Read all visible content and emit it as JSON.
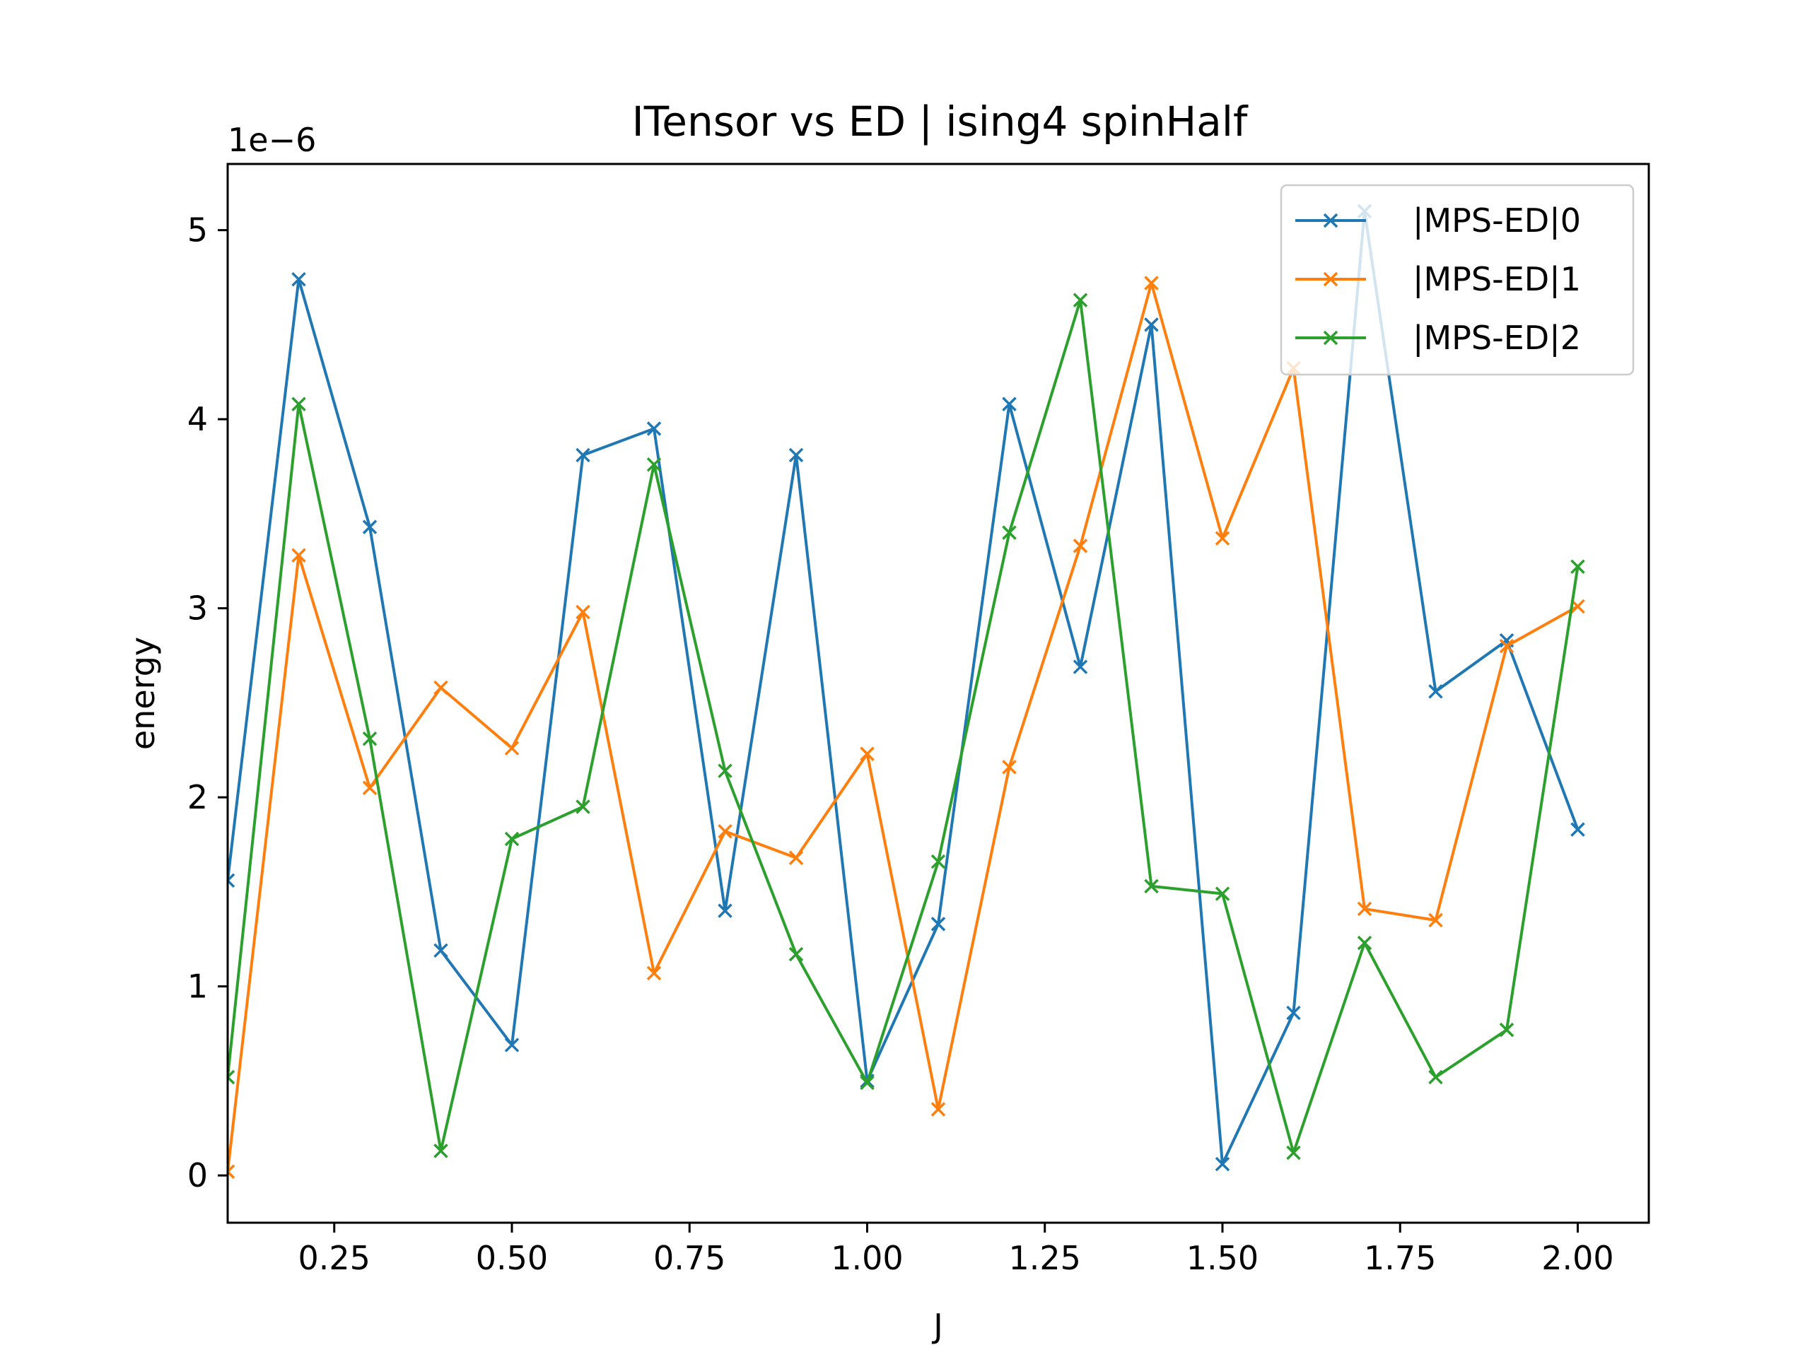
{
  "chart_data": {
    "type": "line",
    "title": "ITensor vs ED | ising4 spinHalf",
    "xlabel": "J",
    "ylabel": "energy",
    "y_offset_label": "1e−6",
    "xlim": [
      0.1,
      2.1
    ],
    "ylim": [
      -0.25,
      5.35
    ],
    "xticks": [
      0.25,
      0.5,
      0.75,
      1.0,
      1.25,
      1.5,
      1.75,
      2.0
    ],
    "xtick_labels": [
      "0.25",
      "0.50",
      "0.75",
      "1.00",
      "1.25",
      "1.50",
      "1.75",
      "2.00"
    ],
    "yticks": [
      0,
      1,
      2,
      3,
      4,
      5
    ],
    "ytick_labels": [
      "0",
      "1",
      "2",
      "3",
      "4",
      "5"
    ],
    "grid": false,
    "legend_position": "top-right",
    "marker": "x",
    "x": [
      0.1,
      0.2,
      0.3,
      0.4,
      0.5,
      0.6,
      0.7,
      0.8,
      0.9,
      1.0,
      1.1,
      1.2,
      1.3,
      1.4,
      1.5,
      1.6,
      1.7,
      1.8,
      1.9,
      2.0
    ],
    "series": [
      {
        "name": "|MPS-ED|0",
        "color": "#1f77b4",
        "values": [
          1.56,
          4.74,
          3.43,
          1.19,
          0.69,
          3.81,
          3.95,
          1.4,
          3.81,
          0.5,
          1.33,
          4.08,
          2.69,
          4.5,
          0.06,
          0.86,
          5.1,
          2.56,
          2.83,
          1.83
        ]
      },
      {
        "name": "|MPS-ED|1",
        "color": "#ff7f0e",
        "values": [
          0.02,
          3.28,
          2.05,
          2.58,
          2.26,
          2.98,
          1.07,
          1.82,
          1.68,
          2.23,
          0.35,
          2.16,
          3.33,
          4.72,
          3.37,
          4.27,
          1.41,
          1.35,
          2.8,
          3.01
        ]
      },
      {
        "name": "|MPS-ED|2",
        "color": "#2ca02c",
        "values": [
          0.52,
          4.08,
          2.31,
          0.13,
          1.78,
          1.95,
          3.76,
          2.14,
          1.17,
          0.49,
          1.66,
          3.4,
          4.63,
          1.53,
          1.49,
          0.12,
          1.23,
          0.52,
          0.77,
          3.22
        ]
      }
    ]
  }
}
